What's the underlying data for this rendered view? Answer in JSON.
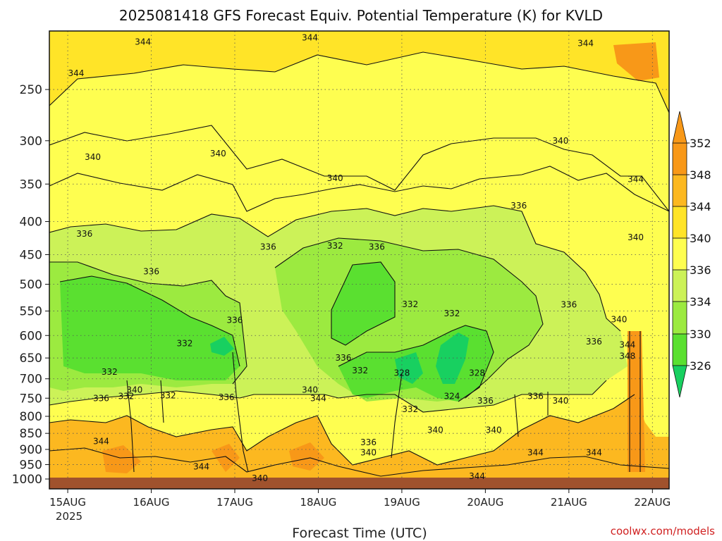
{
  "chart_data": {
    "type": "contour",
    "title": "2025081418 GFS Forecast Equiv. Potential Temperature (K) for KVLD",
    "xlabel": "Forecast Time (UTC)",
    "year_label": "2025",
    "credit": "coolwx.com/models",
    "x_ticks": [
      "15AUG",
      "16AUG",
      "17AUG",
      "18AUG",
      "19AUG",
      "20AUG",
      "21AUG",
      "22AUG"
    ],
    "y_ticks": [
      250,
      300,
      350,
      400,
      450,
      500,
      550,
      600,
      650,
      700,
      750,
      800,
      850,
      900,
      950,
      1000
    ],
    "y_scale": "log pressure (hPa), inverted",
    "ylim": [
      1000,
      200
    ],
    "colorbar": {
      "levels": [
        326,
        330,
        334,
        336,
        340,
        344,
        348,
        352
      ],
      "colors": [
        "#18d060",
        "#5ae030",
        "#9cea40",
        "#ccf258",
        "#fefe50",
        "#ffe428",
        "#fcb820",
        "#f89818"
      ]
    },
    "contour_labels": [
      {
        "text": "344",
        "day": 15.9,
        "p": 211
      },
      {
        "text": "344",
        "day": 17.9,
        "p": 208
      },
      {
        "text": "344",
        "day": 21.2,
        "p": 212
      },
      {
        "text": "344",
        "day": 15.1,
        "p": 236
      },
      {
        "text": "340",
        "day": 15.3,
        "p": 318
      },
      {
        "text": "340",
        "day": 16.8,
        "p": 314
      },
      {
        "text": "340",
        "day": 18.2,
        "p": 343
      },
      {
        "text": "340",
        "day": 20.9,
        "p": 300
      },
      {
        "text": "344",
        "day": 21.8,
        "p": 344
      },
      {
        "text": "336",
        "day": 15.2,
        "p": 418
      },
      {
        "text": "336",
        "day": 16.0,
        "p": 478
      },
      {
        "text": "336",
        "day": 17.4,
        "p": 438
      },
      {
        "text": "332",
        "day": 18.2,
        "p": 436
      },
      {
        "text": "336",
        "day": 18.7,
        "p": 438
      },
      {
        "text": "336",
        "day": 20.4,
        "p": 378
      },
      {
        "text": "340",
        "day": 21.8,
        "p": 423
      },
      {
        "text": "336",
        "day": 17.0,
        "p": 568
      },
      {
        "text": "332",
        "day": 16.4,
        "p": 617
      },
      {
        "text": "332",
        "day": 19.1,
        "p": 537
      },
      {
        "text": "332",
        "day": 19.6,
        "p": 555
      },
      {
        "text": "336",
        "day": 21.0,
        "p": 538
      },
      {
        "text": "336",
        "day": 21.3,
        "p": 613
      },
      {
        "text": "340",
        "day": 21.6,
        "p": 567
      },
      {
        "text": "344",
        "day": 21.7,
        "p": 620
      },
      {
        "text": "348",
        "day": 21.7,
        "p": 646
      },
      {
        "text": "332",
        "day": 15.5,
        "p": 683
      },
      {
        "text": "336",
        "day": 18.3,
        "p": 650
      },
      {
        "text": "332",
        "day": 18.5,
        "p": 680
      },
      {
        "text": "328",
        "day": 19.0,
        "p": 686
      },
      {
        "text": "328",
        "day": 19.9,
        "p": 686
      },
      {
        "text": "340",
        "day": 15.8,
        "p": 728
      },
      {
        "text": "332",
        "day": 16.2,
        "p": 743
      },
      {
        "text": "336",
        "day": 16.9,
        "p": 748
      },
      {
        "text": "336",
        "day": 15.4,
        "p": 750
      },
      {
        "text": "332",
        "day": 15.7,
        "p": 745
      },
      {
        "text": "340",
        "day": 17.9,
        "p": 728
      },
      {
        "text": "344",
        "day": 18.0,
        "p": 750
      },
      {
        "text": "324",
        "day": 19.6,
        "p": 745
      },
      {
        "text": "336",
        "day": 20.0,
        "p": 757
      },
      {
        "text": "332",
        "day": 19.1,
        "p": 780
      },
      {
        "text": "336",
        "day": 20.6,
        "p": 745
      },
      {
        "text": "340",
        "day": 20.9,
        "p": 757
      },
      {
        "text": "340",
        "day": 19.4,
        "p": 840
      },
      {
        "text": "340",
        "day": 20.1,
        "p": 840
      },
      {
        "text": "336",
        "day": 18.6,
        "p": 878
      },
      {
        "text": "340",
        "day": 18.6,
        "p": 910
      },
      {
        "text": "344",
        "day": 15.4,
        "p": 875
      },
      {
        "text": "344",
        "day": 16.6,
        "p": 957
      },
      {
        "text": "344",
        "day": 20.6,
        "p": 910
      },
      {
        "text": "344",
        "day": 21.3,
        "p": 910
      },
      {
        "text": "344",
        "day": 19.9,
        "p": 990
      },
      {
        "text": "340",
        "day": 17.3,
        "p": 997
      }
    ]
  }
}
